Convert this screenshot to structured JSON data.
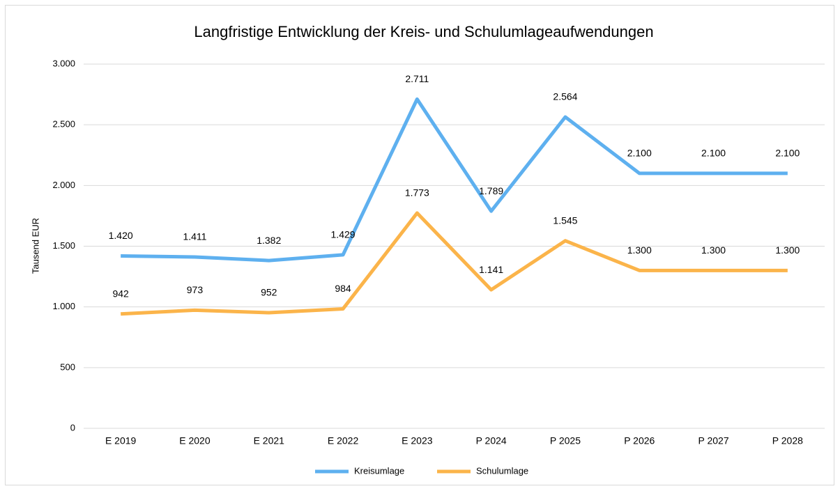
{
  "chart_data": {
    "type": "line",
    "title": "Langfristige Entwicklung der Kreis- und Schulumlageaufwendungen",
    "y_label": "Tausend EUR",
    "categories": [
      "E 2019",
      "E 2020",
      "E 2021",
      "E 2022",
      "E 2023",
      "P 2024",
      "P 2025",
      "P 2026",
      "P 2027",
      "P 2028"
    ],
    "series": [
      {
        "name": "Kreisumlage",
        "color": "#5eb0ef",
        "values": [
          1420,
          1411,
          1382,
          1429,
          2711,
          1789,
          2564,
          2100,
          2100,
          2100
        ],
        "value_labels": [
          "1.420",
          "1.411",
          "1.382",
          "1.429",
          "2.711",
          "1.789",
          "2.564",
          "2.100",
          "2.100",
          "2.100"
        ]
      },
      {
        "name": "Schulumlage",
        "color": "#fbb44a",
        "values": [
          942,
          973,
          952,
          984,
          1773,
          1141,
          1545,
          1300,
          1300,
          1300
        ],
        "value_labels": [
          "942",
          "973",
          "952",
          "984",
          "1.773",
          "1.141",
          "1.545",
          "1.300",
          "1.300",
          "1.300"
        ]
      }
    ],
    "ylim": [
      0,
      3000
    ],
    "yticks": [
      0,
      500,
      {
        "value": 1000,
        "label": "1.000"
      },
      {
        "value": 1500,
        "label": "1.500"
      },
      {
        "value": 2000,
        "label": "2.000"
      },
      {
        "value": 2500,
        "label": "2.500"
      },
      {
        "value": 3000,
        "label": "3.000"
      }
    ],
    "grid": true,
    "legend": "bottom"
  }
}
